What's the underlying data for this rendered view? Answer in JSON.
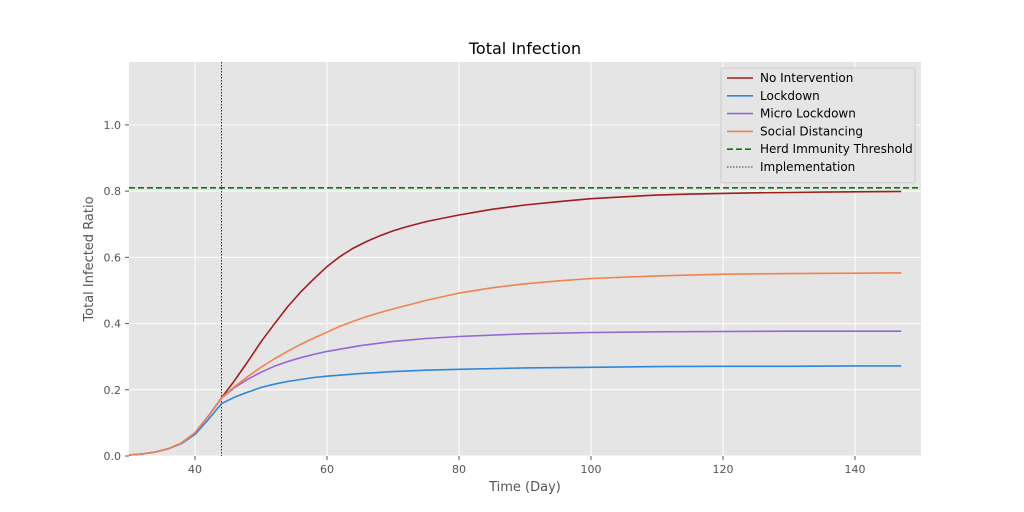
{
  "chart_data": {
    "type": "line",
    "title": "Total Infection",
    "xlabel": "Time (Day)",
    "ylabel": "Total Infected Ratio",
    "xlim": [
      30,
      150
    ],
    "ylim": [
      0,
      1.19
    ],
    "xticks": [
      40,
      60,
      80,
      100,
      120,
      140
    ],
    "yticks": [
      0.0,
      0.2,
      0.4,
      0.6,
      0.8,
      1.0
    ],
    "xtick_labels": [
      "40",
      "60",
      "80",
      "100",
      "120",
      "140"
    ],
    "ytick_labels": [
      "0.0",
      "0.2",
      "0.4",
      "0.6",
      "0.8",
      "1.0"
    ],
    "grid": true,
    "legend_position": "top-right",
    "background_color": "#e5e5e5",
    "series": [
      {
        "name": "No Intervention",
        "color": "#a11d1d",
        "style": "solid",
        "x": [
          30,
          32,
          34,
          36,
          38,
          40,
          42,
          44,
          46,
          48,
          50,
          52,
          54,
          56,
          58,
          60,
          62,
          64,
          66,
          68,
          70,
          72,
          75,
          78,
          80,
          85,
          90,
          95,
          100,
          105,
          110,
          115,
          120,
          125,
          130,
          135,
          140,
          147
        ],
        "y": [
          0.003,
          0.006,
          0.012,
          0.022,
          0.04,
          0.07,
          0.12,
          0.175,
          0.228,
          0.285,
          0.345,
          0.398,
          0.45,
          0.495,
          0.535,
          0.572,
          0.603,
          0.628,
          0.648,
          0.665,
          0.68,
          0.692,
          0.708,
          0.72,
          0.728,
          0.745,
          0.758,
          0.768,
          0.777,
          0.783,
          0.788,
          0.791,
          0.793,
          0.795,
          0.796,
          0.797,
          0.798,
          0.799
        ]
      },
      {
        "name": "Lockdown",
        "color": "#2e86de",
        "style": "solid",
        "x": [
          30,
          32,
          34,
          36,
          38,
          40,
          42,
          44,
          46,
          48,
          50,
          52,
          54,
          56,
          58,
          60,
          65,
          70,
          75,
          80,
          90,
          100,
          110,
          120,
          130,
          140,
          147
        ],
        "y": [
          0.003,
          0.006,
          0.012,
          0.022,
          0.038,
          0.065,
          0.11,
          0.158,
          0.178,
          0.193,
          0.207,
          0.217,
          0.225,
          0.231,
          0.237,
          0.241,
          0.249,
          0.255,
          0.259,
          0.262,
          0.266,
          0.268,
          0.27,
          0.271,
          0.271,
          0.272,
          0.272
        ]
      },
      {
        "name": "Micro Lockdown",
        "color": "#9467d6",
        "style": "solid",
        "x": [
          30,
          32,
          34,
          36,
          38,
          40,
          42,
          44,
          46,
          48,
          50,
          52,
          54,
          56,
          58,
          60,
          65,
          70,
          75,
          80,
          90,
          100,
          110,
          120,
          130,
          140,
          147
        ],
        "y": [
          0.003,
          0.006,
          0.012,
          0.022,
          0.04,
          0.07,
          0.12,
          0.175,
          0.207,
          0.232,
          0.253,
          0.271,
          0.285,
          0.297,
          0.307,
          0.316,
          0.333,
          0.346,
          0.355,
          0.361,
          0.369,
          0.373,
          0.375,
          0.376,
          0.377,
          0.377,
          0.377
        ]
      },
      {
        "name": "Social Distancing",
        "color": "#f0834f",
        "style": "solid",
        "x": [
          30,
          32,
          34,
          36,
          38,
          40,
          42,
          44,
          46,
          48,
          50,
          52,
          54,
          56,
          58,
          60,
          62,
          64,
          66,
          68,
          70,
          75,
          80,
          85,
          90,
          95,
          100,
          110,
          120,
          130,
          140,
          147
        ],
        "y": [
          0.003,
          0.006,
          0.012,
          0.022,
          0.04,
          0.07,
          0.12,
          0.175,
          0.21,
          0.24,
          0.268,
          0.293,
          0.316,
          0.337,
          0.356,
          0.374,
          0.392,
          0.407,
          0.421,
          0.433,
          0.444,
          0.47,
          0.492,
          0.508,
          0.52,
          0.529,
          0.536,
          0.544,
          0.549,
          0.551,
          0.552,
          0.553
        ]
      },
      {
        "name": "Herd Immunity Threshold",
        "color": "#008000",
        "style": "dashed",
        "hline": 0.81
      },
      {
        "name": "Implementation",
        "color": "#000000",
        "style": "dotted",
        "vline": 44
      }
    ]
  }
}
